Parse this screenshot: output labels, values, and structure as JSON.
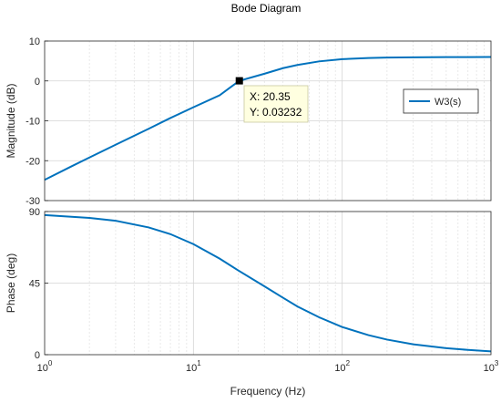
{
  "chart_data": {
    "type": "line",
    "title": "Bode Diagram",
    "xlabel": "Frequency  (Hz)",
    "x_scale": "log",
    "xlim": [
      1,
      1000
    ],
    "x_tick_labels": [
      {
        "base": "10",
        "exp": "0"
      },
      {
        "base": "10",
        "exp": "1"
      },
      {
        "base": "10",
        "exp": "2"
      },
      {
        "base": "10",
        "exp": "3"
      }
    ],
    "grid": true,
    "panels": [
      {
        "name": "magnitude",
        "ylabel": "Magnitude (dB)",
        "ylim": [
          -30,
          10
        ],
        "yticks": [
          "10",
          "0",
          "-10",
          "-20",
          "-30"
        ],
        "ytick_values": [
          10,
          0,
          -10,
          -20,
          -30
        ],
        "legend": {
          "entries": [
            "W3(s)"
          ],
          "placement": "right"
        },
        "series": [
          {
            "name": "W3(s)",
            "color": "#0072bd",
            "x": [
              1,
              1.5,
              2,
              3,
              5,
              7,
              10,
              15,
              20.35,
              30,
              40,
              50,
              70,
              100,
              150,
              200,
              300,
              500,
              700,
              1000
            ],
            "y": [
              -24.8,
              -21.5,
              -19.2,
              -16.0,
              -12.0,
              -9.3,
              -6.6,
              -3.6,
              0.03,
              1.8,
              3.2,
              4.0,
              4.9,
              5.45,
              5.75,
              5.85,
              5.92,
              5.96,
              5.98,
              6.0
            ]
          }
        ],
        "datatip": {
          "x": 20.35,
          "y": 0.03232,
          "x_text": "X: 20.35",
          "y_text": "Y: 0.03232"
        }
      },
      {
        "name": "phase",
        "ylabel": "Phase (deg)",
        "ylim": [
          0,
          90
        ],
        "yticks": [
          "90",
          "45",
          "0"
        ],
        "ytick_values": [
          90,
          45,
          0
        ],
        "series": [
          {
            "name": "W3(s)",
            "color": "#0072bd",
            "x": [
              1,
              2,
              3,
              5,
              7,
              10,
              15,
              20,
              30,
              40,
              50,
              70,
              100,
              150,
              200,
              300,
              500,
              700,
              1000
            ],
            "y": [
              87.8,
              86.0,
              84.2,
              80.0,
              75.8,
              69.5,
              60.4,
              53.0,
              43.0,
              35.8,
              30.3,
              23.5,
              17.4,
              12.3,
              9.5,
              6.5,
              4.1,
              3.0,
              2.1
            ]
          }
        ]
      }
    ]
  }
}
